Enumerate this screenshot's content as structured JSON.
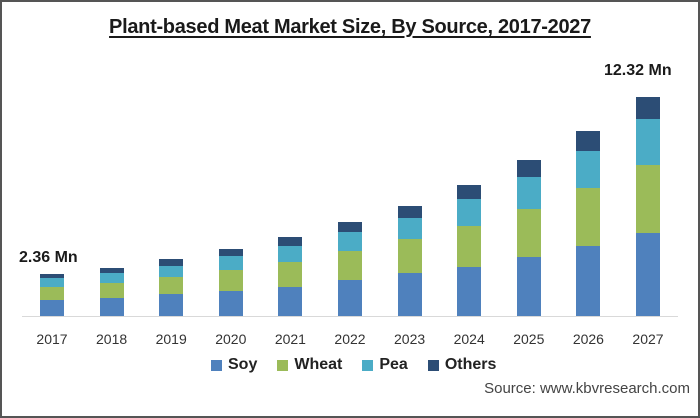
{
  "title": "Plant-based Meat Market Size, By Source, 2017-2027",
  "annotations": {
    "first": "2.36 Mn",
    "last": "12.32 Mn"
  },
  "legend": [
    {
      "label": "Soy",
      "color": "#4f81bd"
    },
    {
      "label": "Wheat",
      "color": "#9bbb59"
    },
    {
      "label": "Pea",
      "color": "#4bacc6"
    },
    {
      "label": "Others",
      "color": "#2c4d75"
    }
  ],
  "source": "Source: www.kbvresearch.com",
  "chart_data": {
    "type": "bar",
    "stacked": true,
    "title": "Plant-based Meat Market Size, By Source, 2017-2027",
    "xlabel": "",
    "ylabel": "",
    "unit": "Mn",
    "categories": [
      "2017",
      "2018",
      "2019",
      "2020",
      "2021",
      "2022",
      "2023",
      "2024",
      "2025",
      "2026",
      "2027"
    ],
    "series": [
      {
        "name": "Soy",
        "color": "#4f81bd",
        "values": [
          0.92,
          1.01,
          1.24,
          1.41,
          1.63,
          2.03,
          2.42,
          2.76,
          3.32,
          3.94,
          4.66
        ]
      },
      {
        "name": "Wheat",
        "color": "#9bbb59",
        "values": [
          0.7,
          0.84,
          0.96,
          1.18,
          1.41,
          1.63,
          1.91,
          2.31,
          2.7,
          3.26,
          3.83
        ]
      },
      {
        "name": "Pea",
        "color": "#4bacc6",
        "values": [
          0.51,
          0.56,
          0.62,
          0.79,
          0.9,
          1.07,
          1.18,
          1.52,
          1.8,
          2.08,
          2.59
        ]
      },
      {
        "name": "Others",
        "color": "#2c4d75",
        "values": [
          0.23,
          0.28,
          0.39,
          0.39,
          0.51,
          0.56,
          0.68,
          0.79,
          0.96,
          1.13,
          1.24
        ]
      }
    ],
    "data_labels": [
      {
        "category": "2017",
        "text": "2.36 Mn"
      },
      {
        "category": "2027",
        "text": "12.32 Mn"
      }
    ],
    "ylim": [
      0,
      12.32
    ],
    "y_axis_visible": false,
    "grid": false,
    "legend_position": "bottom"
  }
}
